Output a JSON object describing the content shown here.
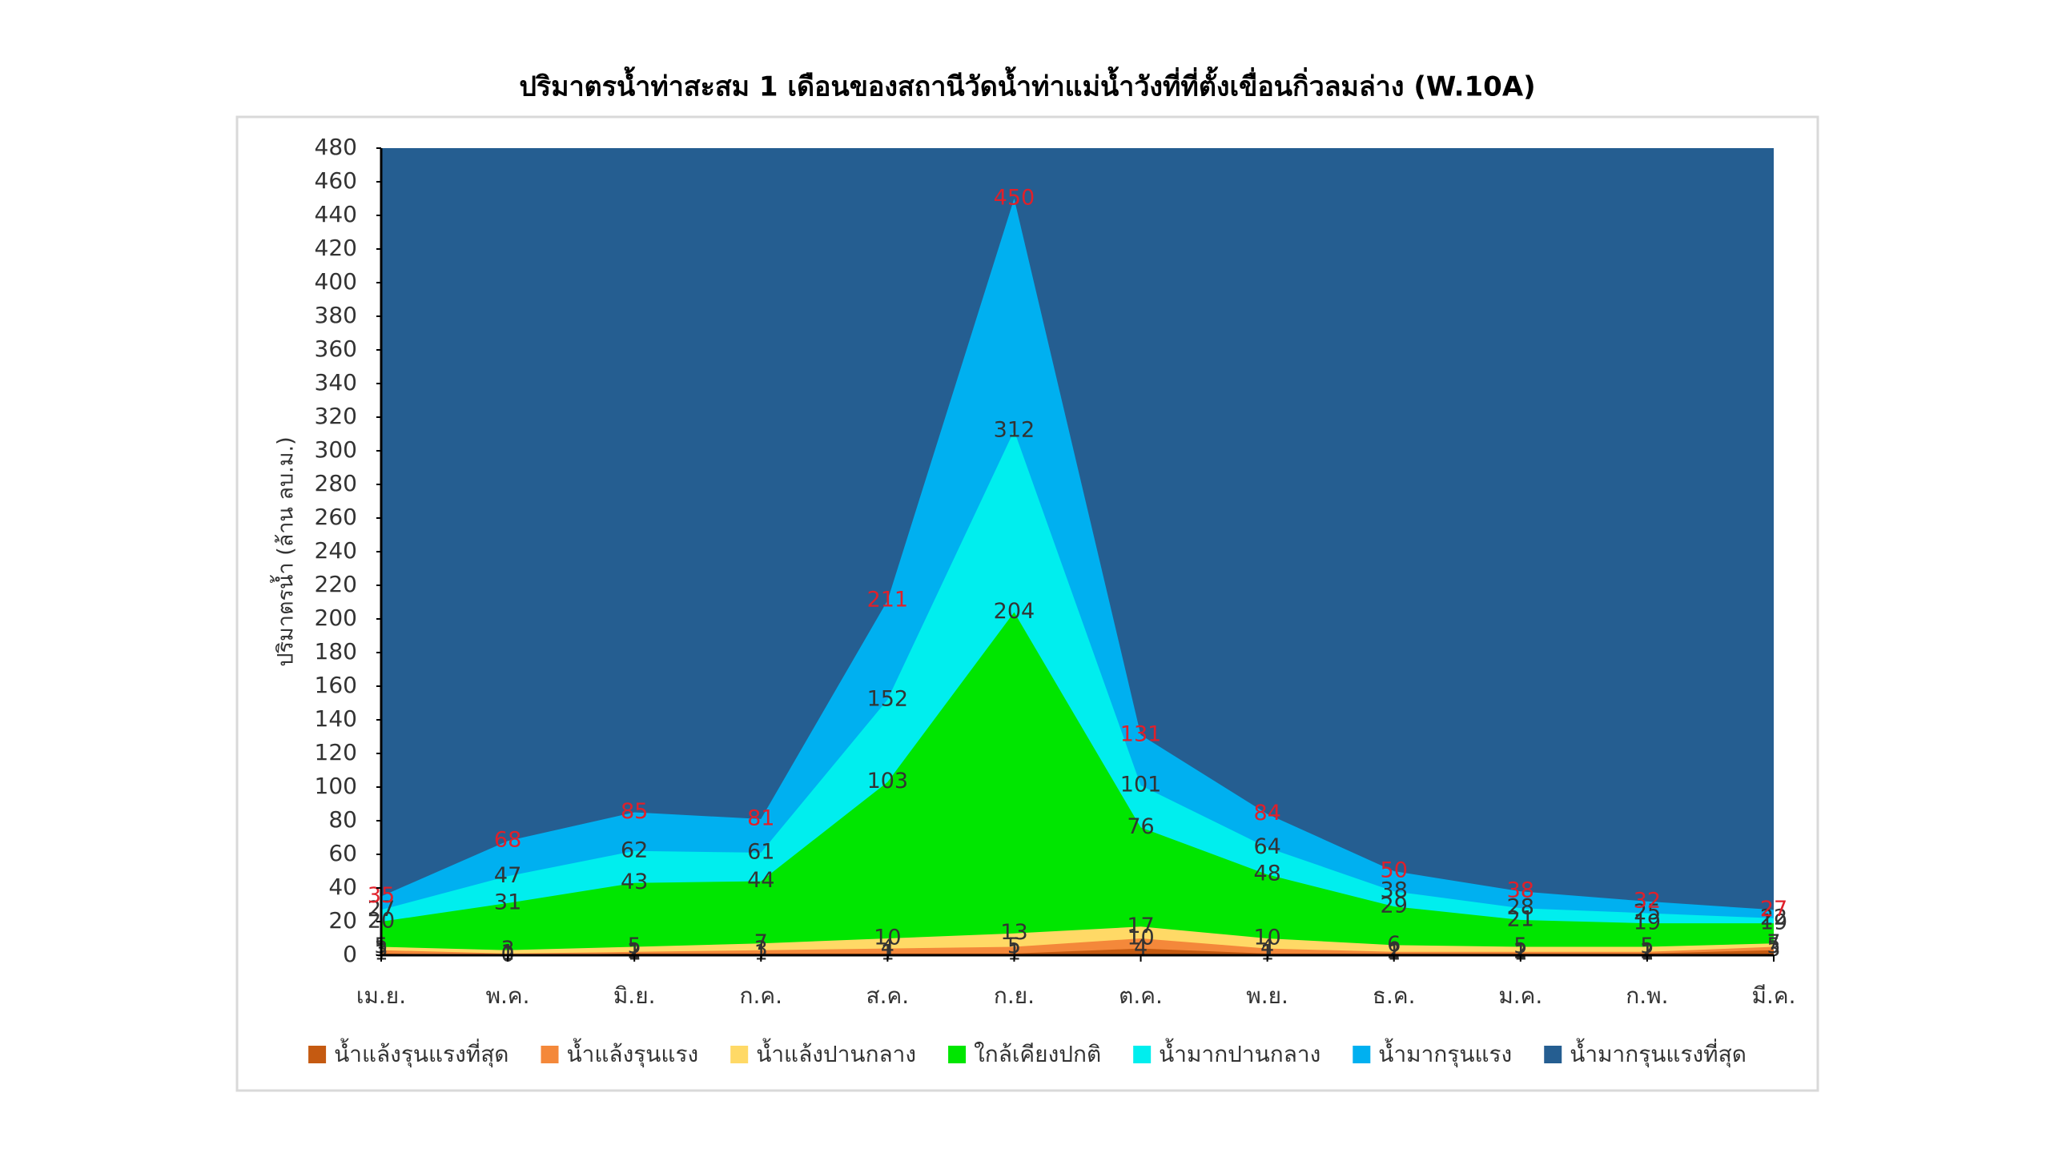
{
  "chart_data": {
    "type": "area",
    "title": "ปริมาตรน้ำท่าสะสม 1 เดือนของสถานีวัดน้ำท่าแม่น้ำวังที่ที่ตั้งเขื่อนกิ่วลมล่าง (W.10A)",
    "y_label": "ปริมาตรน้ำ (ล้าน ลบ.ม.)",
    "categories": [
      "เม.ย.",
      "พ.ค.",
      "มิ.ย.",
      "ก.ค.",
      "ส.ค.",
      "ก.ย.",
      "ต.ค.",
      "พ.ย.",
      "ธ.ค.",
      "ม.ค.",
      "ก.พ.",
      "มี.ค."
    ],
    "ylim": [
      0,
      480
    ],
    "yticks": [
      0,
      20,
      40,
      60,
      80,
      100,
      120,
      140,
      160,
      180,
      200,
      220,
      240,
      260,
      280,
      300,
      320,
      340,
      360,
      380,
      400,
      420,
      440,
      460,
      480
    ],
    "legend": "bottom",
    "series": [
      {
        "name": "น้ำแล้งรุนแรงที่สุด",
        "color": "#c55a11",
        "label_color": "#333333",
        "values": [
          1,
          0,
          1,
          1,
          1,
          1,
          4,
          1,
          1,
          1,
          1,
          3
        ]
      },
      {
        "name": "น้ำแล้งรุนแรง",
        "color": "#f4883a",
        "label_color": "#333333",
        "values": [
          3,
          1,
          2,
          3,
          4,
          5,
          10,
          4,
          2,
          2,
          2,
          5
        ]
      },
      {
        "name": "น้ำแล้งปานกลาง",
        "color": "#ffd966",
        "label_color": "#333333",
        "values": [
          5,
          3,
          5,
          7,
          10,
          13,
          17,
          10,
          6,
          5,
          5,
          7
        ]
      },
      {
        "name": "ใกล้เคียงปกติ",
        "color": "#00e600",
        "label_color": "#333333",
        "values": [
          20,
          31,
          43,
          44,
          103,
          204,
          76,
          48,
          29,
          21,
          19,
          19
        ]
      },
      {
        "name": "น้ำมากปานกลาง",
        "color": "#00eeee",
        "label_color": "#333333",
        "values": [
          27,
          47,
          62,
          61,
          152,
          312,
          101,
          64,
          38,
          28,
          25,
          22
        ]
      },
      {
        "name": "น้ำมากรุนแรง",
        "color": "#00b0f0",
        "label_color": "#e0202a",
        "values": [
          35,
          68,
          85,
          81,
          211,
          450,
          131,
          84,
          50,
          38,
          32,
          27
        ]
      },
      {
        "name": "น้ำมากรุนแรงที่สุด",
        "color": "#255e91"
      }
    ]
  }
}
